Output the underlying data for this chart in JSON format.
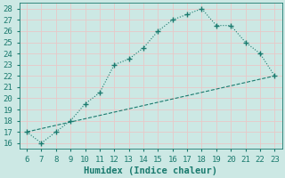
{
  "x": [
    6,
    7,
    8,
    9,
    10,
    11,
    12,
    13,
    14,
    15,
    16,
    17,
    18,
    19,
    20,
    21,
    22,
    23
  ],
  "y": [
    17.0,
    16.0,
    17.0,
    18.0,
    19.5,
    20.5,
    23.0,
    23.5,
    24.5,
    26.0,
    27.0,
    27.5,
    28.0,
    26.5,
    26.5,
    25.0,
    24.0,
    22.0
  ],
  "line2_x": [
    6,
    23
  ],
  "line2_y": [
    17.0,
    22.0
  ],
  "line_color": "#1a7a6e",
  "marker": "+",
  "xlabel": "Humidex (Indice chaleur)",
  "xlim": [
    5.5,
    23.5
  ],
  "ylim": [
    15.5,
    28.5
  ],
  "yticks": [
    16,
    17,
    18,
    19,
    20,
    21,
    22,
    23,
    24,
    25,
    26,
    27,
    28
  ],
  "xticks": [
    6,
    7,
    8,
    9,
    10,
    11,
    12,
    13,
    14,
    15,
    16,
    17,
    18,
    19,
    20,
    21,
    22,
    23
  ],
  "bg_color": "#cce8e4",
  "grid_color": "#e8c8c8",
  "tick_color": "#1a7a6e",
  "label_color": "#1a7a6e",
  "font_size": 6.5
}
